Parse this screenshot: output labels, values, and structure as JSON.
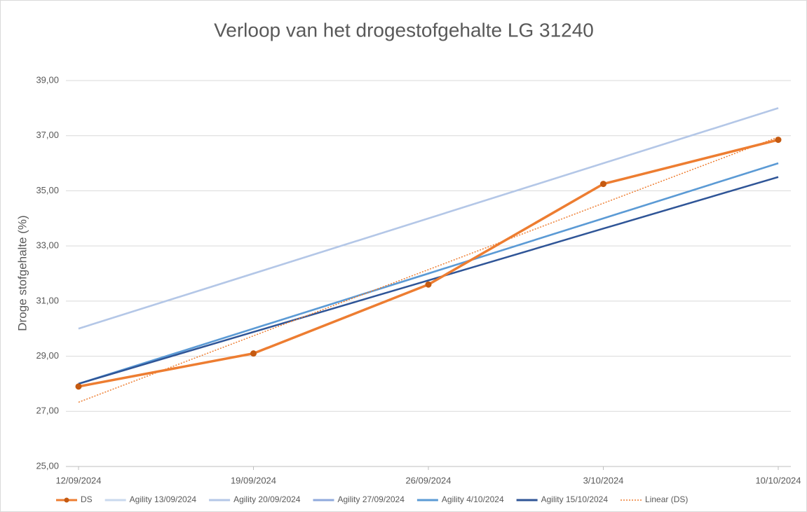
{
  "chart_data": {
    "type": "line",
    "title": "Verloop van het drogestofgehalte LG 31240",
    "y_label": "Droge stofgehalte (%)",
    "categories": [
      "12/09/2024",
      "19/09/2024",
      "26/09/2024",
      "3/10/2024",
      "10/10/2024"
    ],
    "series": [
      {
        "name": "DS",
        "color": "#ed7d31",
        "values": [
          27.9,
          29.1,
          31.6,
          35.25,
          36.85
        ],
        "markers": true
      },
      {
        "name": "Agility 13/09/2024",
        "color": "#c9d9ee",
        "values": [
          30,
          32,
          34,
          36,
          38
        ]
      },
      {
        "name": "Agility 20/09/2024",
        "color": "#b4c7e7",
        "values": [
          30,
          32,
          34,
          36,
          38
        ]
      },
      {
        "name": "Agility 27/09/2024",
        "color": "#8faadc",
        "values": [
          28,
          30,
          32,
          34,
          36
        ]
      },
      {
        "name": "Agility 4/10/2024",
        "color": "#5b9bd5",
        "values": [
          28,
          30,
          32,
          34,
          36
        ]
      },
      {
        "name": "Agility 15/10/2024",
        "color": "#2f5597",
        "values": [
          28,
          29.88,
          31.75,
          33.63,
          35.5
        ]
      },
      {
        "name": "Linear (DS)",
        "color": "#ed7d31",
        "values": [
          27.33,
          29.74,
          32.14,
          34.55,
          36.95
        ],
        "dotted": true
      }
    ],
    "ylim": [
      25,
      39
    ],
    "yticks": [
      {
        "value": 25,
        "label": "25,00"
      },
      {
        "value": 27,
        "label": "27,00"
      },
      {
        "value": 29,
        "label": "29,00"
      },
      {
        "value": 31,
        "label": "31,00"
      },
      {
        "value": 33,
        "label": "33,00"
      },
      {
        "value": 35,
        "label": "35,00"
      },
      {
        "value": 37,
        "label": "37,00"
      },
      {
        "value": 39,
        "label": "39,00"
      }
    ],
    "grid": true,
    "legend": "bottom"
  }
}
